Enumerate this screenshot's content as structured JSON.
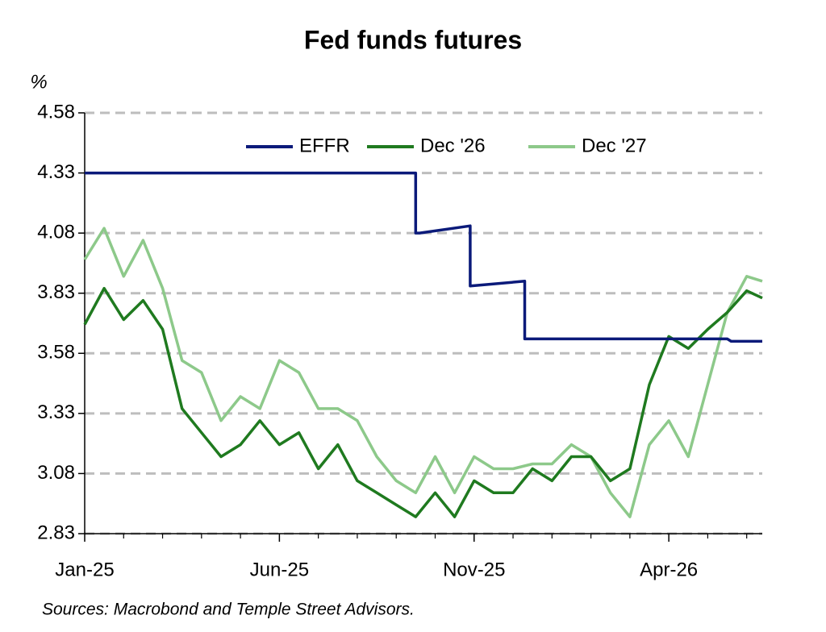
{
  "chart_data": {
    "type": "line",
    "title": "Fed funds futures",
    "y_label": "%",
    "source": "Sources: Macrobond and Temple Street Advisors.",
    "ylim": [
      2.83,
      4.58
    ],
    "yticks": [
      2.83,
      3.08,
      3.33,
      3.58,
      3.83,
      4.08,
      4.33,
      4.58
    ],
    "xlim": [
      0,
      17.4
    ],
    "xticks": [
      {
        "value": 0,
        "label": "Jan-25"
      },
      {
        "value": 5,
        "label": "Jun-25"
      },
      {
        "value": 10,
        "label": "Nov-25"
      },
      {
        "value": 15,
        "label": "Apr-26"
      }
    ],
    "xminor_ticks": [
      1,
      2,
      3,
      4,
      6,
      7,
      8,
      9,
      11,
      12,
      13,
      14,
      16,
      17
    ],
    "grid": true,
    "legend": "top",
    "series": [
      {
        "name": "EFFR",
        "color": "#0b1a7a",
        "x": [
          0,
          8.5,
          8.5,
          8.6,
          9.9,
          9.9,
          11.3,
          11.3,
          16.5,
          16.6,
          17.4
        ],
        "values": [
          4.33,
          4.33,
          4.08,
          4.08,
          4.11,
          3.86,
          3.88,
          3.64,
          3.64,
          3.63,
          3.63
        ]
      },
      {
        "name": "Dec '26",
        "color": "#1f7a1f",
        "x": [
          0,
          0.5,
          1,
          1.5,
          2,
          2.5,
          3,
          3.5,
          4,
          4.5,
          5,
          5.5,
          6,
          6.5,
          7,
          7.5,
          8,
          8.5,
          9,
          9.5,
          10,
          10.5,
          11,
          11.5,
          12,
          12.5,
          13,
          13.5,
          14,
          14.5,
          15,
          15.5,
          16,
          16.5,
          17,
          17.4
        ],
        "values": [
          3.7,
          3.85,
          3.72,
          3.8,
          3.68,
          3.35,
          3.25,
          3.15,
          3.2,
          3.3,
          3.2,
          3.25,
          3.1,
          3.2,
          3.05,
          3.0,
          2.95,
          2.9,
          3.0,
          2.9,
          3.05,
          3.0,
          3.0,
          3.1,
          3.05,
          3.15,
          3.15,
          3.05,
          3.1,
          3.45,
          3.65,
          3.6,
          3.68,
          3.75,
          3.84,
          3.81
        ]
      },
      {
        "name": "Dec '27",
        "color": "#8dc98a",
        "x": [
          0,
          0.5,
          1,
          1.5,
          2,
          2.5,
          3,
          3.5,
          4,
          4.5,
          5,
          5.5,
          6,
          6.5,
          7,
          7.5,
          8,
          8.5,
          9,
          9.5,
          10,
          10.5,
          11,
          11.5,
          12,
          12.5,
          13,
          13.5,
          14,
          14.5,
          15,
          15.5,
          16,
          16.5,
          17,
          17.4
        ],
        "values": [
          3.97,
          4.1,
          3.9,
          4.05,
          3.85,
          3.55,
          3.5,
          3.3,
          3.4,
          3.35,
          3.55,
          3.5,
          3.35,
          3.35,
          3.3,
          3.15,
          3.05,
          3.0,
          3.15,
          3.0,
          3.15,
          3.1,
          3.1,
          3.12,
          3.12,
          3.2,
          3.15,
          3.0,
          2.9,
          3.2,
          3.3,
          3.15,
          3.45,
          3.75,
          3.9,
          3.88
        ]
      }
    ]
  }
}
